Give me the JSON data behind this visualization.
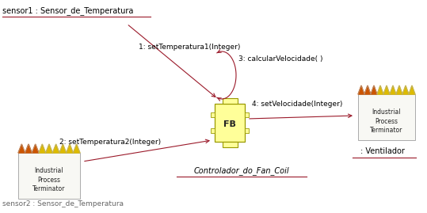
{
  "bg_color": "#ffffff",
  "fb_label": "FB",
  "controller_label": "Controlador_do_Fan_Coil",
  "sensor1_label": "sensor1 : Sensor_de_Temperatura",
  "sensor2_label": "sensor2 : Sensor_de_Temperatura",
  "ventilador_label": ": Ventilador",
  "ipt_label": "Industrial\nProcess\nTerminator",
  "msg1": "1: setTemperatura1(Integer)",
  "msg2": "2: setTemperatura2(Integer)",
  "msg3": "3: calcularVelocidade( )",
  "msg4": "4: setVelocidade(Integer)",
  "arrow_color": "#9b1a2a",
  "fb_face": "#ffff99",
  "fb_edge": "#999900",
  "ipt_face": "#f8f8f4",
  "ipt_edge": "#aaaaaa",
  "tooth_colors": [
    "#cc5500",
    "#cc5500",
    "#cc5500",
    "#ddcc00",
    "#ddcc00",
    "#ddcc00",
    "#ddcc00",
    "#ddcc00"
  ],
  "underline_color": "#9b1a2a",
  "text_color": "#000000",
  "sensor1_color": "#000000"
}
